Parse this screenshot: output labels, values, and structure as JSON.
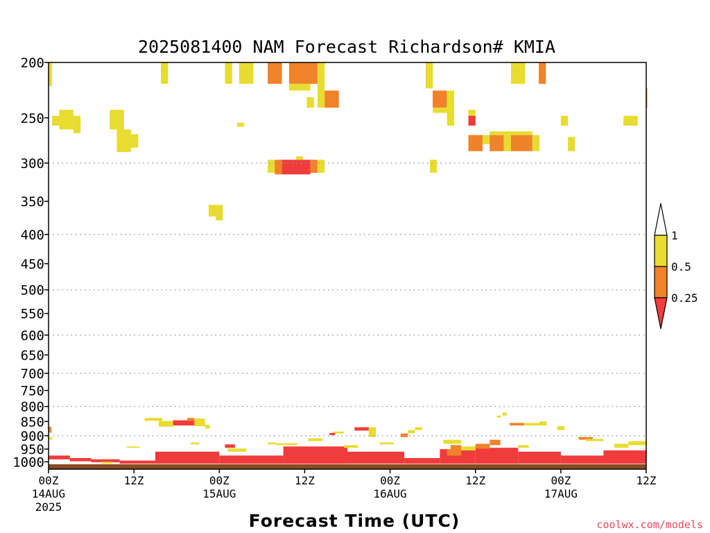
{
  "chart_data": {
    "type": "heatmap",
    "title": "2025081400 NAM Forecast Richardson# KMIA",
    "xlabel": "Forecast Time (UTC)",
    "ylabel": "",
    "credit": "coolwx.com/models",
    "y_scale": "log-pressure",
    "y_reversed": true,
    "ylim": [
      1030,
      200
    ],
    "xlim": [
      0,
      84
    ],
    "x_units": "forecast hours",
    "y_ticks": [
      200,
      250,
      300,
      350,
      400,
      450,
      500,
      550,
      600,
      650,
      700,
      750,
      800,
      850,
      900,
      950,
      1000
    ],
    "y_gridlines": [
      300,
      400,
      500,
      600,
      700,
      800,
      900
    ],
    "x_ticks": [
      {
        "x": 0,
        "line1": "00Z",
        "line2": "14AUG",
        "line3": "2025"
      },
      {
        "x": 12,
        "line1": "12Z",
        "line2": "",
        "line3": ""
      },
      {
        "x": 24,
        "line1": "00Z",
        "line2": "15AUG",
        "line3": ""
      },
      {
        "x": 36,
        "line1": "12Z",
        "line2": "",
        "line3": ""
      },
      {
        "x": 48,
        "line1": "00Z",
        "line2": "16AUG",
        "line3": ""
      },
      {
        "x": 60,
        "line1": "12Z",
        "line2": "",
        "line3": ""
      },
      {
        "x": 72,
        "line1": "00Z",
        "line2": "17AUG",
        "line3": ""
      },
      {
        "x": 84,
        "line1": "12Z",
        "line2": "",
        "line3": ""
      }
    ],
    "legend": {
      "placement": "right",
      "labels": [
        "1",
        "0.5",
        "0.25"
      ],
      "bins": [
        {
          "label": "1",
          "min": 0.5,
          "max": 1.0,
          "color": "#e8dc30"
        },
        {
          "label": "0.5",
          "min": 0.25,
          "max": 0.5,
          "color": "#f0822a"
        },
        {
          "label": "0.25",
          "min": null,
          "max": 0.25,
          "color": "#f03c3c"
        }
      ]
    },
    "colors": {
      "gt1": "#e8dc30",
      "mid": "#f0822a",
      "low": "#f03c3c",
      "ground": "#8b4a22"
    },
    "surface": {
      "x0": 0,
      "x1": 84,
      "p_top": 1010,
      "p_bottom": 1030
    },
    "cells": [
      {
        "x0": 0.0,
        "x1": 0.5,
        "p0": 200,
        "p1": 220,
        "c": "gt1"
      },
      {
        "x0": 15.8,
        "x1": 16.8,
        "p0": 200,
        "p1": 218,
        "c": "gt1"
      },
      {
        "x0": 24.8,
        "x1": 25.8,
        "p0": 200,
        "p1": 218,
        "c": "gt1"
      },
      {
        "x0": 26.8,
        "x1": 28.8,
        "p0": 200,
        "p1": 218,
        "c": "gt1"
      },
      {
        "x0": 30.8,
        "x1": 32.8,
        "p0": 200,
        "p1": 218,
        "c": "mid"
      },
      {
        "x0": 33.8,
        "x1": 37.8,
        "p0": 200,
        "p1": 218,
        "c": "mid"
      },
      {
        "x0": 33.8,
        "x1": 36.8,
        "p0": 218,
        "p1": 224,
        "c": "gt1"
      },
      {
        "x0": 37.8,
        "x1": 38.8,
        "p0": 200,
        "p1": 240,
        "c": "gt1"
      },
      {
        "x0": 36.3,
        "x1": 37.3,
        "p0": 230,
        "p1": 240,
        "c": "gt1"
      },
      {
        "x0": 38.8,
        "x1": 40.8,
        "p0": 224,
        "p1": 240,
        "c": "mid"
      },
      {
        "x0": 53.0,
        "x1": 54.0,
        "p0": 200,
        "p1": 222,
        "c": "gt1"
      },
      {
        "x0": 54.0,
        "x1": 56.0,
        "p0": 224,
        "p1": 240,
        "c": "mid"
      },
      {
        "x0": 56.0,
        "x1": 57.0,
        "p0": 224,
        "p1": 240,
        "c": "gt1"
      },
      {
        "x0": 54.0,
        "x1": 56.0,
        "p0": 240,
        "p1": 245,
        "c": "gt1"
      },
      {
        "x0": 56.0,
        "x1": 57.0,
        "p0": 240,
        "p1": 258,
        "c": "gt1"
      },
      {
        "x0": 65.0,
        "x1": 67.0,
        "p0": 200,
        "p1": 218,
        "c": "gt1"
      },
      {
        "x0": 68.9,
        "x1": 69.9,
        "p0": 200,
        "p1": 218,
        "c": "mid"
      },
      {
        "x0": 84.0,
        "x1": 84.0,
        "p0": 222,
        "p1": 240,
        "c": "mid"
      },
      {
        "x0": 0.5,
        "x1": 1.5,
        "p0": 248,
        "p1": 258,
        "c": "gt1"
      },
      {
        "x0": 1.5,
        "x1": 3.5,
        "p0": 242,
        "p1": 262,
        "c": "gt1"
      },
      {
        "x0": 3.5,
        "x1": 4.5,
        "p0": 248,
        "p1": 266,
        "c": "gt1"
      },
      {
        "x0": 8.6,
        "x1": 10.6,
        "p0": 242,
        "p1": 262,
        "c": "gt1"
      },
      {
        "x0": 9.6,
        "x1": 11.6,
        "p0": 262,
        "p1": 287,
        "c": "gt1"
      },
      {
        "x0": 11.6,
        "x1": 12.6,
        "p0": 267,
        "p1": 282,
        "c": "gt1"
      },
      {
        "x0": 26.5,
        "x1": 27.5,
        "p0": 255,
        "p1": 259,
        "c": "gt1"
      },
      {
        "x0": 59.0,
        "x1": 60.0,
        "p0": 242,
        "p1": 248,
        "c": "gt1"
      },
      {
        "x0": 59.0,
        "x1": 60.0,
        "p0": 248,
        "p1": 258,
        "c": "low"
      },
      {
        "x0": 59.0,
        "x1": 61.0,
        "p0": 268,
        "p1": 286,
        "c": "mid"
      },
      {
        "x0": 61.0,
        "x1": 62.0,
        "p0": 268,
        "p1": 278,
        "c": "gt1"
      },
      {
        "x0": 62.0,
        "x1": 64.0,
        "p0": 268,
        "p1": 286,
        "c": "mid"
      },
      {
        "x0": 64.0,
        "x1": 65.0,
        "p0": 268,
        "p1": 286,
        "c": "gt1"
      },
      {
        "x0": 65.0,
        "x1": 68.0,
        "p0": 268,
        "p1": 286,
        "c": "mid"
      },
      {
        "x0": 68.0,
        "x1": 69.0,
        "p0": 268,
        "p1": 286,
        "c": "gt1"
      },
      {
        "x0": 62.0,
        "x1": 68.0,
        "p0": 264,
        "p1": 268,
        "c": "gt1"
      },
      {
        "x0": 72.0,
        "x1": 73.0,
        "p0": 248,
        "p1": 258,
        "c": "gt1"
      },
      {
        "x0": 73.0,
        "x1": 74.0,
        "p0": 270,
        "p1": 286,
        "c": "gt1"
      },
      {
        "x0": 80.8,
        "x1": 82.8,
        "p0": 248,
        "p1": 258,
        "c": "gt1"
      },
      {
        "x0": 30.8,
        "x1": 31.8,
        "p0": 296,
        "p1": 312,
        "c": "gt1"
      },
      {
        "x0": 31.8,
        "x1": 32.8,
        "p0": 296,
        "p1": 314,
        "c": "mid"
      },
      {
        "x0": 32.8,
        "x1": 36.8,
        "p0": 296,
        "p1": 314,
        "c": "low"
      },
      {
        "x0": 34.8,
        "x1": 35.8,
        "p0": 292,
        "p1": 296,
        "c": "gt1"
      },
      {
        "x0": 36.8,
        "x1": 37.8,
        "p0": 296,
        "p1": 312,
        "c": "mid"
      },
      {
        "x0": 37.8,
        "x1": 38.8,
        "p0": 296,
        "p1": 312,
        "c": "gt1"
      },
      {
        "x0": 53.6,
        "x1": 54.6,
        "p0": 296,
        "p1": 312,
        "c": "gt1"
      },
      {
        "x0": 22.5,
        "x1": 24.5,
        "p0": 355,
        "p1": 372,
        "c": "gt1"
      },
      {
        "x0": 23.5,
        "x1": 24.5,
        "p0": 372,
        "p1": 378,
        "c": "gt1"
      },
      {
        "x0": 13.5,
        "x1": 16.0,
        "p0": 838,
        "p1": 848,
        "c": "gt1"
      },
      {
        "x0": 15.5,
        "x1": 17.5,
        "p0": 848,
        "p1": 868,
        "c": "gt1"
      },
      {
        "x0": 17.5,
        "x1": 20.5,
        "p0": 846,
        "p1": 864,
        "c": "low"
      },
      {
        "x0": 19.5,
        "x1": 20.5,
        "p0": 838,
        "p1": 848,
        "c": "mid"
      },
      {
        "x0": 20.5,
        "x1": 22.0,
        "p0": 840,
        "p1": 866,
        "c": "gt1"
      },
      {
        "x0": 22.0,
        "x1": 22.7,
        "p0": 862,
        "p1": 874,
        "c": "gt1"
      },
      {
        "x0": 0.0,
        "x1": 0.4,
        "p0": 868,
        "p1": 890,
        "c": "mid"
      },
      {
        "x0": 0.0,
        "x1": 0.5,
        "p0": 905,
        "p1": 915,
        "c": "gt1"
      },
      {
        "x0": 63.8,
        "x1": 64.4,
        "p0": 820,
        "p1": 830,
        "c": "gt1"
      },
      {
        "x0": 63.0,
        "x1": 63.6,
        "p0": 830,
        "p1": 836,
        "c": "gt1"
      },
      {
        "x0": 64.8,
        "x1": 66.8,
        "p0": 855,
        "p1": 864,
        "c": "mid"
      },
      {
        "x0": 66.8,
        "x1": 69.0,
        "p0": 855,
        "p1": 864,
        "c": "gt1"
      },
      {
        "x0": 69.0,
        "x1": 70.0,
        "p0": 850,
        "p1": 864,
        "c": "gt1"
      },
      {
        "x0": 71.5,
        "x1": 72.5,
        "p0": 866,
        "p1": 880,
        "c": "gt1"
      },
      {
        "x0": 43.0,
        "x1": 45.0,
        "p0": 870,
        "p1": 882,
        "c": "low"
      },
      {
        "x0": 45.0,
        "x1": 46.0,
        "p0": 870,
        "p1": 905,
        "c": "gt1"
      },
      {
        "x0": 51.5,
        "x1": 52.5,
        "p0": 870,
        "p1": 880,
        "c": "gt1"
      },
      {
        "x0": 50.5,
        "x1": 51.5,
        "p0": 880,
        "p1": 892,
        "c": "gt1"
      },
      {
        "x0": 49.5,
        "x1": 50.5,
        "p0": 892,
        "p1": 905,
        "c": "mid"
      },
      {
        "x0": 40.0,
        "x1": 41.5,
        "p0": 885,
        "p1": 892,
        "c": "gt1"
      },
      {
        "x0": 39.5,
        "x1": 40.3,
        "p0": 890,
        "p1": 898,
        "c": "low"
      },
      {
        "x0": 24.8,
        "x1": 26.2,
        "p0": 932,
        "p1": 945,
        "c": "low"
      },
      {
        "x0": 25.2,
        "x1": 27.8,
        "p0": 948,
        "p1": 960,
        "c": "gt1"
      },
      {
        "x0": 30.8,
        "x1": 32.0,
        "p0": 925,
        "p1": 932,
        "c": "gt1"
      },
      {
        "x0": 32.0,
        "x1": 35.0,
        "p0": 928,
        "p1": 935,
        "c": "gt1"
      },
      {
        "x0": 0.0,
        "x1": 3.0,
        "p0": 975,
        "p1": 990,
        "c": "low"
      },
      {
        "x0": 3.0,
        "x1": 6.0,
        "p0": 985,
        "p1": 998,
        "c": "low"
      },
      {
        "x0": 6.0,
        "x1": 10.0,
        "p0": 990,
        "p1": 1002,
        "c": "low"
      },
      {
        "x0": 10.0,
        "x1": 15.0,
        "p0": 995,
        "p1": 1008,
        "c": "low"
      },
      {
        "x0": 15.0,
        "x1": 24.0,
        "p0": 960,
        "p1": 1008,
        "c": "low"
      },
      {
        "x0": 24.0,
        "x1": 33.0,
        "p0": 975,
        "p1": 1008,
        "c": "low"
      },
      {
        "x0": 33.0,
        "x1": 42.0,
        "p0": 940,
        "p1": 1008,
        "c": "low"
      },
      {
        "x0": 42.0,
        "x1": 50.0,
        "p0": 960,
        "p1": 1008,
        "c": "low"
      },
      {
        "x0": 50.0,
        "x1": 55.0,
        "p0": 985,
        "p1": 1008,
        "c": "low"
      },
      {
        "x0": 55.0,
        "x1": 60.0,
        "p0": 950,
        "p1": 1008,
        "c": "low"
      },
      {
        "x0": 60.0,
        "x1": 66.0,
        "p0": 945,
        "p1": 1008,
        "c": "low"
      },
      {
        "x0": 66.0,
        "x1": 72.0,
        "p0": 960,
        "p1": 1008,
        "c": "low"
      },
      {
        "x0": 72.0,
        "x1": 78.0,
        "p0": 975,
        "p1": 1008,
        "c": "low"
      },
      {
        "x0": 78.0,
        "x1": 84.0,
        "p0": 955,
        "p1": 1008,
        "c": "low"
      },
      {
        "x0": 55.5,
        "x1": 58.0,
        "p0": 915,
        "p1": 930,
        "c": "gt1"
      },
      {
        "x0": 56.5,
        "x1": 58.0,
        "p0": 935,
        "p1": 950,
        "c": "mid"
      },
      {
        "x0": 56.0,
        "x1": 58.0,
        "p0": 950,
        "p1": 975,
        "c": "mid"
      },
      {
        "x0": 58.0,
        "x1": 60.0,
        "p0": 940,
        "p1": 955,
        "c": "gt1"
      },
      {
        "x0": 60.0,
        "x1": 62.0,
        "p0": 930,
        "p1": 948,
        "c": "mid"
      },
      {
        "x0": 62.0,
        "x1": 63.5,
        "p0": 915,
        "p1": 935,
        "c": "mid"
      },
      {
        "x0": 74.5,
        "x1": 76.5,
        "p0": 905,
        "p1": 915,
        "c": "mid"
      },
      {
        "x0": 75.5,
        "x1": 78.0,
        "p0": 912,
        "p1": 920,
        "c": "gt1"
      },
      {
        "x0": 79.5,
        "x1": 81.5,
        "p0": 930,
        "p1": 945,
        "c": "gt1"
      },
      {
        "x0": 81.5,
        "x1": 84.0,
        "p0": 920,
        "p1": 935,
        "c": "gt1"
      },
      {
        "x0": 7.5,
        "x1": 9.0,
        "p0": 1000,
        "p1": 1008,
        "c": "gt1"
      },
      {
        "x0": 11.0,
        "x1": 12.8,
        "p0": 940,
        "p1": 945,
        "c": "gt1"
      },
      {
        "x0": 20.0,
        "x1": 21.2,
        "p0": 925,
        "p1": 932,
        "c": "gt1"
      },
      {
        "x0": 66.0,
        "x1": 67.5,
        "p0": 935,
        "p1": 945,
        "c": "gt1"
      },
      {
        "x0": 41.5,
        "x1": 43.5,
        "p0": 935,
        "p1": 945,
        "c": "gt1"
      },
      {
        "x0": 46.5,
        "x1": 48.5,
        "p0": 925,
        "p1": 932,
        "c": "gt1"
      },
      {
        "x0": 36.5,
        "x1": 38.5,
        "p0": 910,
        "p1": 920,
        "c": "gt1"
      }
    ]
  }
}
